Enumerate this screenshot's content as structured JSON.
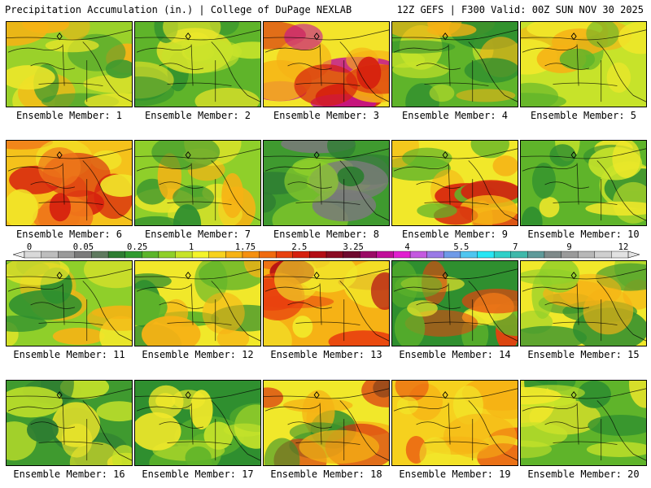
{
  "header": {
    "left_title": "Precipitation Accumulation (in.) | College of DuPage NEXLAB",
    "right_title": "12Z GEFS | F300 Valid: 00Z SUN NOV 30 2025"
  },
  "colorbar": {
    "labels": [
      "0",
      "0.05",
      "0.25",
      "1",
      "1.75",
      "2.5",
      "3.25",
      "4",
      "5.5",
      "7",
      "9",
      "12"
    ],
    "colors": [
      "#d9d9d9",
      "#bdbdbd",
      "#9a9a9a",
      "#7a7a7a",
      "#5f7a5f",
      "#2e7d32",
      "#2f9a2f",
      "#5cb52a",
      "#8fcf2a",
      "#c7e32a",
      "#f4f42a",
      "#f7d21e",
      "#f6b215",
      "#f5900f",
      "#f06a0e",
      "#e8410f",
      "#d6200e",
      "#b30d15",
      "#8a0b22",
      "#6e0a2e",
      "#9a0b66",
      "#c10e9a",
      "#e11ed0",
      "#c45ae0",
      "#9a7ae6",
      "#6f9ae8",
      "#4fc6f0",
      "#27e6f4",
      "#2fd0c8",
      "#3fb8aa",
      "#5f9a9a",
      "#7f8a8a",
      "#9a9a9a",
      "#b7b7b7",
      "#cfcfcf",
      "#e2e2e2"
    ]
  },
  "members": [
    {
      "label": "Ensemble Member: 1",
      "palette": [
        "#9ad12a",
        "#f1e82a",
        "#f6b215",
        "#3f9a2f"
      ]
    },
    {
      "label": "Ensemble Member: 2",
      "palette": [
        "#5fb42a",
        "#2f8f2f",
        "#c7e32a",
        "#f1e82a"
      ]
    },
    {
      "label": "Ensemble Member: 3",
      "palette": [
        "#f3e42a",
        "#f6b215",
        "#d6200e",
        "#c10e9a"
      ]
    },
    {
      "label": "Ensemble Member: 4",
      "palette": [
        "#5fb42a",
        "#c7e32a",
        "#f6b215",
        "#2f8f2f"
      ]
    },
    {
      "label": "Ensemble Member: 5",
      "palette": [
        "#c7e32a",
        "#f6b215",
        "#5fb42a",
        "#f1e82a"
      ]
    },
    {
      "label": "Ensemble Member: 6",
      "palette": [
        "#f5c21b",
        "#f0781a",
        "#d6200e",
        "#f1e82a"
      ]
    },
    {
      "label": "Ensemble Member: 7",
      "palette": [
        "#8fcf2a",
        "#f1e82a",
        "#2f8f2f",
        "#f6b215"
      ]
    },
    {
      "label": "Ensemble Member: 8",
      "palette": [
        "#3f9a2f",
        "#2e7d32",
        "#8fcf2a",
        "#7a7a7a"
      ]
    },
    {
      "label": "Ensemble Member: 9",
      "palette": [
        "#f1e82a",
        "#f6b215",
        "#5fb42a",
        "#d6200e"
      ]
    },
    {
      "label": "Ensemble Member: 10",
      "palette": [
        "#5fb42a",
        "#f1e82a",
        "#2f8f2f",
        "#c7e32a"
      ]
    },
    {
      "label": "Ensemble Member: 11",
      "palette": [
        "#8fcf2a",
        "#f6b215",
        "#2f8f2f",
        "#f1e82a"
      ]
    },
    {
      "label": "Ensemble Member: 12",
      "palette": [
        "#f1e82a",
        "#5fb42a",
        "#f6b215",
        "#2f8f2f"
      ]
    },
    {
      "label": "Ensemble Member: 13",
      "palette": [
        "#f6b215",
        "#e8410f",
        "#f1e82a",
        "#b30d15"
      ]
    },
    {
      "label": "Ensemble Member: 14",
      "palette": [
        "#2f8f2f",
        "#5fb42a",
        "#f1e82a",
        "#e8410f"
      ]
    },
    {
      "label": "Ensemble Member: 15",
      "palette": [
        "#f1e82a",
        "#8fcf2a",
        "#2f8f2f",
        "#f6b215"
      ]
    },
    {
      "label": "Ensemble Member: 16",
      "palette": [
        "#3f9a2f",
        "#2e7d32",
        "#c7e32a",
        "#f1e82a"
      ]
    },
    {
      "label": "Ensemble Member: 17",
      "palette": [
        "#2f8f2f",
        "#5fb42a",
        "#f1e82a",
        "#c7e32a"
      ]
    },
    {
      "label": "Ensemble Member: 18",
      "palette": [
        "#f1e82a",
        "#f6b215",
        "#2f8f2f",
        "#d6200e"
      ]
    },
    {
      "label": "Ensemble Member: 19",
      "palette": [
        "#f6d11e",
        "#f6b215",
        "#f1e82a",
        "#e8410f"
      ]
    },
    {
      "label": "Ensemble Member: 20",
      "palette": [
        "#5fb42a",
        "#2f8f2f",
        "#c7e32a",
        "#f1e82a"
      ]
    }
  ]
}
